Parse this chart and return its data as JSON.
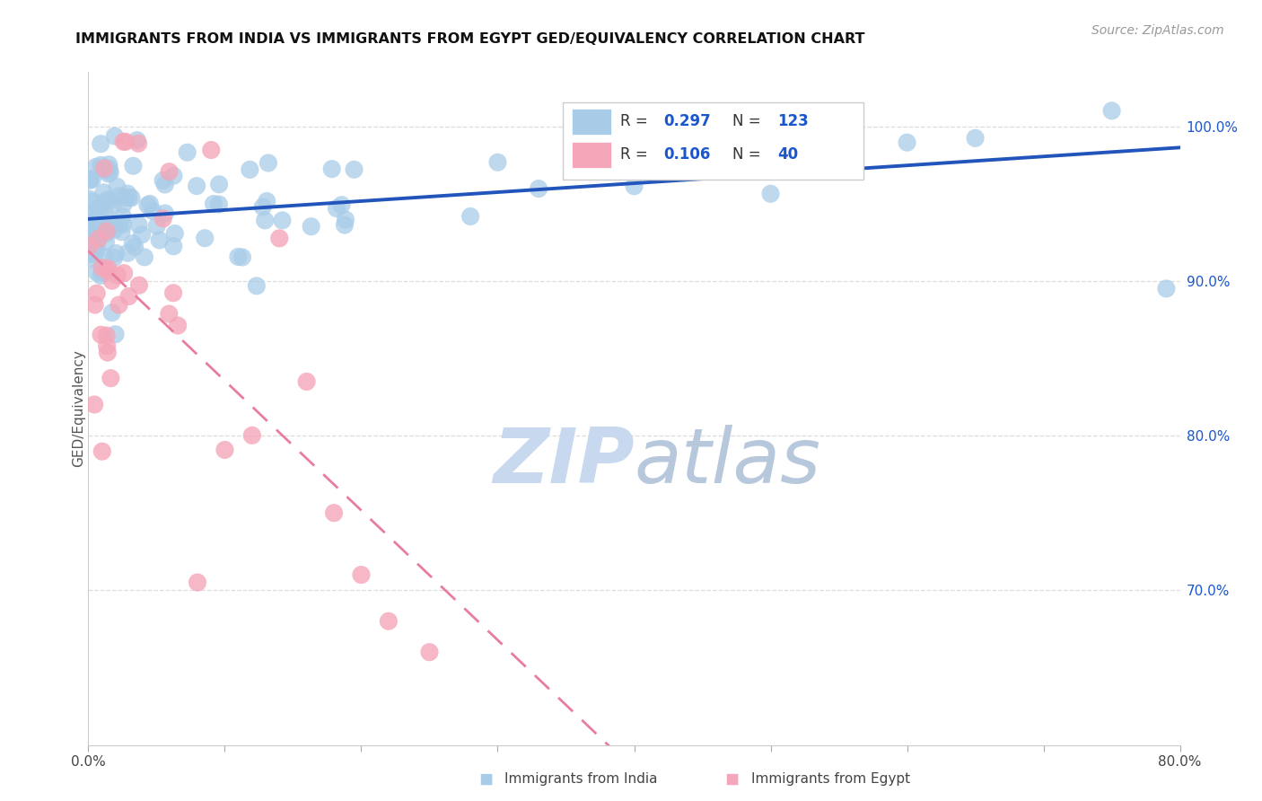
{
  "title": "IMMIGRANTS FROM INDIA VS IMMIGRANTS FROM EGYPT GED/EQUIVALENCY CORRELATION CHART",
  "source": "Source: ZipAtlas.com",
  "ylabel": "GED/Equivalency",
  "xlim": [
    0.0,
    0.8
  ],
  "ylim": [
    0.6,
    1.035
  ],
  "xtick_positions": [
    0.0,
    0.1,
    0.2,
    0.3,
    0.4,
    0.5,
    0.6,
    0.7,
    0.8
  ],
  "xticklabels": [
    "0.0%",
    "",
    "",
    "",
    "",
    "",
    "",
    "",
    "80.0%"
  ],
  "ytick_positions": [
    0.7,
    0.8,
    0.9,
    1.0
  ],
  "ytick_labels": [
    "70.0%",
    "80.0%",
    "90.0%",
    "100.0%"
  ],
  "india_R": 0.297,
  "india_N": 123,
  "egypt_R": 0.106,
  "egypt_N": 40,
  "india_color": "#a8cce8",
  "egypt_color": "#f4a7b9",
  "india_line_color": "#2255bb",
  "egypt_line_color": "#e87da0",
  "text_color": "#1a56cc",
  "watermark_color": "#c8d8ee",
  "background_color": "#ffffff",
  "grid_color": "#dddddd",
  "legend_box_color": "#eeeeee"
}
